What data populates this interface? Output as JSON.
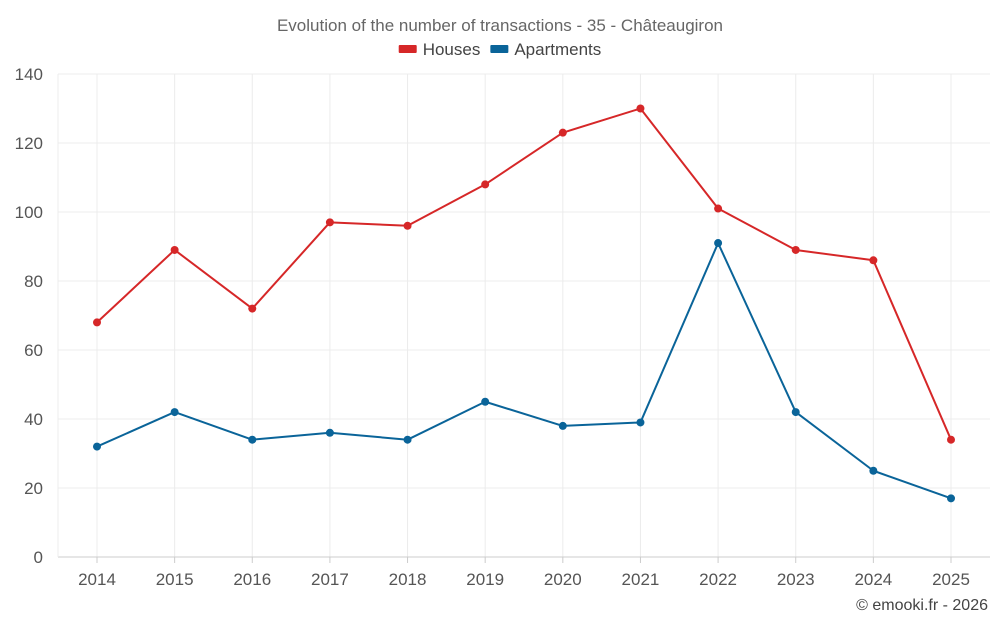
{
  "chart_data": {
    "type": "line",
    "title": "Evolution of the number of transactions - 35 - Châteaugiron",
    "xlabel": "",
    "ylabel": "",
    "categories": [
      "2014",
      "2015",
      "2016",
      "2017",
      "2018",
      "2019",
      "2020",
      "2021",
      "2022",
      "2023",
      "2024",
      "2025"
    ],
    "ylim": [
      0,
      140
    ],
    "yticks": [
      0,
      20,
      40,
      60,
      80,
      100,
      120,
      140
    ],
    "grid": true,
    "legend_position": "top-center",
    "series": [
      {
        "name": "Houses",
        "color": "#d62728",
        "values": [
          68,
          89,
          72,
          97,
          96,
          108,
          123,
          130,
          101,
          89,
          86,
          34
        ]
      },
      {
        "name": "Apartments",
        "color": "#0a6499",
        "values": [
          32,
          42,
          34,
          36,
          34,
          45,
          38,
          39,
          91,
          42,
          25,
          17
        ]
      }
    ]
  },
  "footer": {
    "credit": "© emooki.fr - 2026"
  }
}
